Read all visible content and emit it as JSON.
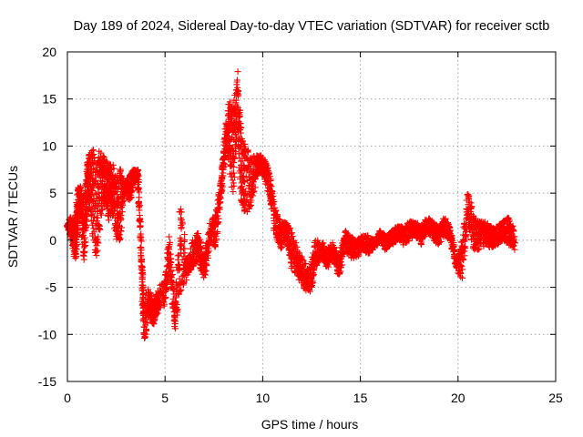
{
  "chart_data": {
    "type": "scatter",
    "title": "Day 189 of 2024, Sidereal Day-to-day VTEC variation (SDTVAR) for receiver sctb",
    "xlabel": "GPS time / hours",
    "ylabel": "SDTVAR / TECUs",
    "xlim": [
      0,
      25
    ],
    "ylim": [
      -15,
      20
    ],
    "xticks": [
      0,
      5,
      10,
      15,
      20,
      25
    ],
    "yticks": [
      -15,
      -10,
      -5,
      0,
      5,
      10,
      15,
      20
    ],
    "grid": true,
    "marker": "+",
    "color": "#ff0000",
    "series": [
      {
        "name": "SDTVAR",
        "trace": [
          [
            0.0,
            1.5,
            1.5
          ],
          [
            0.15,
            0.5,
            2.5
          ],
          [
            0.3,
            -1.5,
            2.0
          ],
          [
            0.45,
            -2.0,
            3.0
          ],
          [
            0.55,
            2.0,
            6.0
          ],
          [
            0.7,
            2.5,
            5.5
          ],
          [
            0.85,
            -2.5,
            4.0
          ],
          [
            1.0,
            2.0,
            8.0
          ],
          [
            1.1,
            4.0,
            9.5
          ],
          [
            1.3,
            0.0,
            10.0
          ],
          [
            1.5,
            -2.0,
            8.0
          ],
          [
            1.7,
            2.0,
            10.0
          ],
          [
            1.9,
            4.0,
            9.0
          ],
          [
            2.1,
            2.0,
            8.0
          ],
          [
            2.3,
            3.0,
            8.5
          ],
          [
            2.5,
            0.0,
            6.0
          ],
          [
            2.7,
            -1.0,
            9.0
          ],
          [
            2.9,
            5.0,
            6.0
          ],
          [
            3.2,
            4.0,
            7.0
          ],
          [
            3.4,
            6.0,
            7.5
          ],
          [
            3.6,
            6.5,
            7.5
          ],
          [
            3.8,
            -3.0,
            -2.0
          ],
          [
            3.9,
            -11.0,
            -6.0
          ],
          [
            4.2,
            -8.0,
            -5.0
          ],
          [
            4.4,
            -9.0,
            -7.0
          ],
          [
            4.6,
            -8.0,
            -5.0
          ],
          [
            5.0,
            -7.0,
            -4.0
          ],
          [
            5.2,
            -3.0,
            1.0
          ],
          [
            5.5,
            -9.5,
            -7.5
          ],
          [
            5.8,
            -6.0,
            4.5
          ],
          [
            6.1,
            -4.0,
            -2.0
          ],
          [
            6.4,
            -3.0,
            0.0
          ],
          [
            6.7,
            -2.0,
            1.0
          ],
          [
            7.0,
            -4.5,
            -2.0
          ],
          [
            7.3,
            0.0,
            2.0
          ],
          [
            7.6,
            -1.0,
            3.0
          ],
          [
            7.9,
            5.0,
            7.0
          ],
          [
            8.1,
            10.0,
            12.0
          ],
          [
            8.3,
            8.0,
            15.0
          ],
          [
            8.5,
            4.0,
            14.0
          ],
          [
            8.7,
            12.0,
            18.0
          ],
          [
            8.9,
            4.0,
            12.0
          ],
          [
            9.1,
            3.0,
            10.0
          ],
          [
            9.4,
            3.0,
            9.0
          ],
          [
            9.7,
            7.0,
            9.0
          ],
          [
            10.0,
            7.0,
            9.0
          ],
          [
            10.3,
            5.0,
            7.5
          ],
          [
            10.6,
            1.0,
            4.0
          ],
          [
            10.9,
            -1.0,
            2.0
          ],
          [
            11.2,
            0.0,
            2.0
          ],
          [
            11.5,
            -3.0,
            1.0
          ],
          [
            11.8,
            -4.0,
            -1.0
          ],
          [
            12.1,
            -5.0,
            -2.0
          ],
          [
            12.4,
            -6.0,
            -3.0
          ],
          [
            12.7,
            -3.0,
            0.0
          ],
          [
            13.0,
            -2.0,
            0.0
          ],
          [
            13.3,
            -3.0,
            -1.0
          ],
          [
            13.6,
            -2.0,
            0.0
          ],
          [
            13.9,
            -4.0,
            -2.0
          ],
          [
            14.2,
            -1.0,
            1.0
          ],
          [
            14.5,
            -2.0,
            0.5
          ],
          [
            14.8,
            -2.0,
            0.0
          ],
          [
            15.1,
            -1.0,
            0.5
          ],
          [
            15.4,
            -1.5,
            0.5
          ],
          [
            15.7,
            -1.0,
            0.0
          ],
          [
            16.0,
            0.0,
            1.0
          ],
          [
            16.3,
            -1.0,
            0.5
          ],
          [
            16.6,
            -0.5,
            1.0
          ],
          [
            16.9,
            0.0,
            1.5
          ],
          [
            17.2,
            -0.5,
            1.5
          ],
          [
            17.5,
            0.0,
            2.0
          ],
          [
            17.8,
            0.5,
            2.0
          ],
          [
            18.1,
            -0.5,
            1.5
          ],
          [
            18.4,
            1.0,
            2.5
          ],
          [
            18.7,
            0.0,
            2.0
          ],
          [
            19.0,
            -0.5,
            1.5
          ],
          [
            19.3,
            0.5,
            2.5
          ],
          [
            19.6,
            0.0,
            1.5
          ],
          [
            19.9,
            -3.0,
            -2.0
          ],
          [
            20.2,
            -4.5,
            0.0
          ],
          [
            20.5,
            2.0,
            5.5
          ],
          [
            20.8,
            -1.0,
            3.0
          ],
          [
            21.1,
            -1.0,
            2.0
          ],
          [
            21.4,
            -0.5,
            2.0
          ],
          [
            21.7,
            -1.0,
            1.5
          ],
          [
            22.0,
            -0.5,
            1.5
          ],
          [
            22.3,
            0.0,
            2.0
          ],
          [
            22.6,
            -0.5,
            2.5
          ],
          [
            22.9,
            -1.0,
            1.0
          ]
        ]
      }
    ]
  }
}
